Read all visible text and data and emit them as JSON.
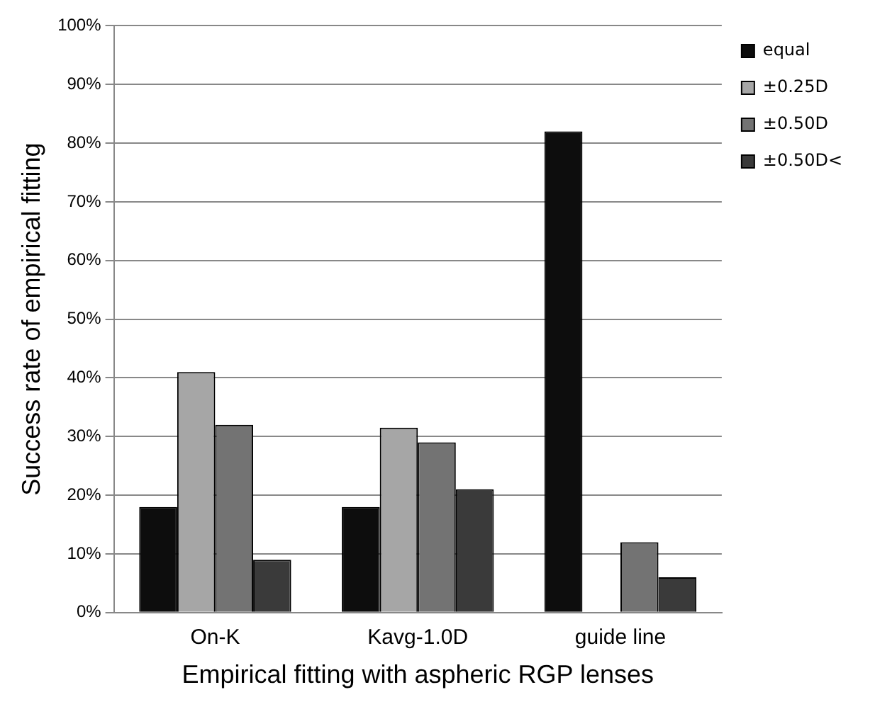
{
  "chart_data": {
    "type": "bar",
    "xlabel": "Empirical fitting with aspheric RGP lenses",
    "ylabel": "Success rate of empirical fitting",
    "categories": [
      "On-K",
      "Kavg-1.0D",
      "guide line"
    ],
    "series": [
      {
        "name": "equal",
        "color": "#0d0d0d",
        "values": [
          18,
          18,
          82
        ]
      },
      {
        "name": "±0.25D",
        "color": "#a6a6a6",
        "values": [
          41,
          31.5,
          null
        ]
      },
      {
        "name": "±0.50D",
        "color": "#737373",
        "values": [
          32,
          29,
          12
        ]
      },
      {
        "name": "±0.50D<",
        "color": "#3a3a3a",
        "values": [
          9,
          21,
          6
        ]
      }
    ],
    "ylim": [
      0,
      100
    ],
    "yticks": [
      {
        "value": 0,
        "label": "0%"
      },
      {
        "value": 10,
        "label": "10%"
      },
      {
        "value": 20,
        "label": "20%"
      },
      {
        "value": 30,
        "label": "30%"
      },
      {
        "value": 40,
        "label": "40%"
      },
      {
        "value": 50,
        "label": "50%"
      },
      {
        "value": 60,
        "label": "60%"
      },
      {
        "value": 70,
        "label": "70%"
      },
      {
        "value": 80,
        "label": "80%"
      },
      {
        "value": 90,
        "label": "90%"
      },
      {
        "value": 100,
        "label": "100%"
      }
    ],
    "grid": "y",
    "legend": "top right"
  }
}
